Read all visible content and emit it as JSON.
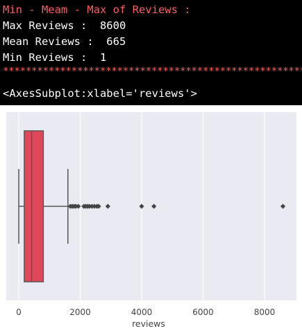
{
  "console": {
    "header": "Min - Meam - Max of Reviews :",
    "max_line": "Max Reviews :  8600",
    "mean_line": "Mean Reviews :  665",
    "min_line": "Min Reviews :  1",
    "separator": "*****************************************************",
    "repr": "<AxesSubplot:xlabel='reviews'>"
  },
  "colors": {
    "header": "#ff5f5f",
    "box_fill": "#e04859",
    "box_edge": "#555555",
    "plot_bg": "#eaeaf2",
    "grid": "#ffffff",
    "console_bg": "#000000"
  },
  "chart_data": {
    "type": "boxplot",
    "xlabel": "reviews",
    "xlim": [
      -400,
      9100
    ],
    "xticks": [
      0,
      2000,
      4000,
      6000,
      8000
    ],
    "grid": true,
    "box": {
      "whisker_low": 1,
      "q1": 180,
      "median": 420,
      "q3": 800,
      "whisker_high": 1600
    },
    "outliers": [
      1680,
      1740,
      1800,
      1860,
      1940,
      2120,
      2180,
      2240,
      2300,
      2380,
      2460,
      2540,
      2600,
      2900,
      4000,
      4400,
      8600
    ]
  }
}
